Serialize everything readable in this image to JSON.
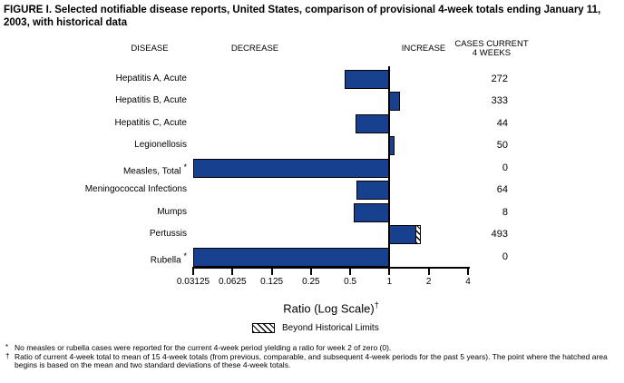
{
  "title": "FIGURE I. Selected notifiable disease reports, United States, comparison of provisional 4-week totals ending January 11, 2003, with historical data",
  "columns": {
    "disease": "DISEASE",
    "decrease": "DECREASE",
    "increase": "INCREASE",
    "cases_line1": "CASES CURRENT",
    "cases_line2": "4 WEEKS"
  },
  "axis": {
    "label": "Ratio (Log Scale)",
    "label_sup": "†",
    "tick_labels": [
      "0.03125",
      "0.0625",
      "0.125",
      "0.25",
      "0.5",
      "1",
      "2",
      "4"
    ]
  },
  "legend": {
    "beyond_label": "Beyond Historical Limits",
    "swatch_style": "diagonal-hatch"
  },
  "footnotes": [
    {
      "marker": "*",
      "text": "No measles or rubella cases were reported for the current 4-week period yielding a ratio for week 2 of zero (0)."
    },
    {
      "marker": "†",
      "text": "Ratio of current 4-week total to mean of 15 4-week totals (from previous, comparable, and subsequent 4-week periods for the past 5 years). The point where the hatched area begins is based on the mean and two standard deviations of these 4-week totals."
    }
  ],
  "colors": {
    "bar": "#17418E",
    "axis": "#000000",
    "background": "#FFFFFF"
  },
  "chart_data": {
    "type": "bar",
    "orientation": "horizontal",
    "title": "FIGURE I. Selected notifiable disease reports, United States, comparison of provisional 4-week totals ending January 11, 2003, with historical data",
    "xlabel": "Ratio (Log Scale)†",
    "x_scale": "log2",
    "xlim": [
      0.03125,
      4
    ],
    "x_ticks": [
      0.03125,
      0.0625,
      0.125,
      0.25,
      0.5,
      1,
      2,
      4
    ],
    "baseline": 1,
    "grid": false,
    "legend_position": "bottom",
    "categories": [
      "Hepatitis A, Acute",
      "Hepatitis B, Acute",
      "Hepatitis C, Acute",
      "Legionellosis",
      "Measles, Total",
      "Meningococcal Infections",
      "Mumps",
      "Pertussis",
      "Rubella"
    ],
    "category_markers": [
      "",
      "",
      "",
      "",
      "*",
      "",
      "",
      "",
      "*"
    ],
    "series": [
      {
        "name": "Ratio of current 4-week total to historical mean",
        "values": [
          0.45,
          1.2,
          0.55,
          1.1,
          0,
          0.56,
          0.53,
          1.75,
          0
        ]
      },
      {
        "name": "Cases Current 4 Weeks",
        "values": [
          272,
          333,
          44,
          50,
          0,
          64,
          8,
          493,
          0
        ]
      }
    ],
    "beyond_historical_limits": [
      {
        "category": "Pertussis",
        "hatch_start": 1.6,
        "hatch_end": 1.75
      }
    ],
    "zero_ratio_bars_note": "Bars with ratio 0 (Measles, Rubella) extend to the left edge of the log scale"
  }
}
